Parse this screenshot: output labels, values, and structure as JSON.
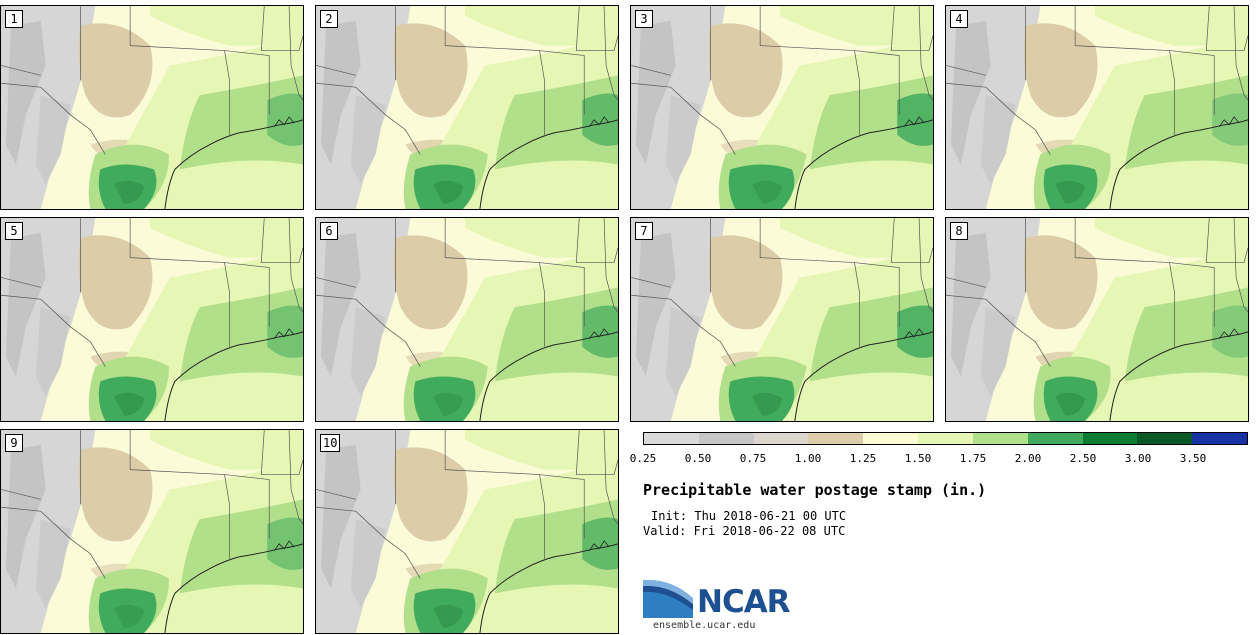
{
  "panels": [
    {
      "label": "1"
    },
    {
      "label": "2"
    },
    {
      "label": "3"
    },
    {
      "label": "4"
    },
    {
      "label": "5"
    },
    {
      "label": "6"
    },
    {
      "label": "7"
    },
    {
      "label": "8"
    },
    {
      "label": "9"
    },
    {
      "label": "10"
    }
  ],
  "legend": {
    "colors": [
      "#d9d9d9",
      "#c6c6c6",
      "#dcd6cc",
      "#ddcda8",
      "#fcfcd2",
      "#e6f6b4",
      "#b2df8a",
      "#41ab5d",
      "#0d7d34",
      "#0b5a26",
      "#1733a6"
    ],
    "ticks": [
      "0.25",
      "0.50",
      "0.75",
      "1.00",
      "1.25",
      "1.50",
      "1.75",
      "2.00",
      "2.50",
      "3.00",
      "3.50"
    ]
  },
  "title": "Precipitable water postage stamp (in.)",
  "init": "Init: Thu 2018-06-21 00 UTC",
  "valid": "Valid: Fri 2018-06-22 08 UTC",
  "logo": {
    "text": "NCAR",
    "url": "ensemble.ucar.edu",
    "colors": {
      "navy": "#1d4f91",
      "blue": "#2d7fc1"
    }
  }
}
